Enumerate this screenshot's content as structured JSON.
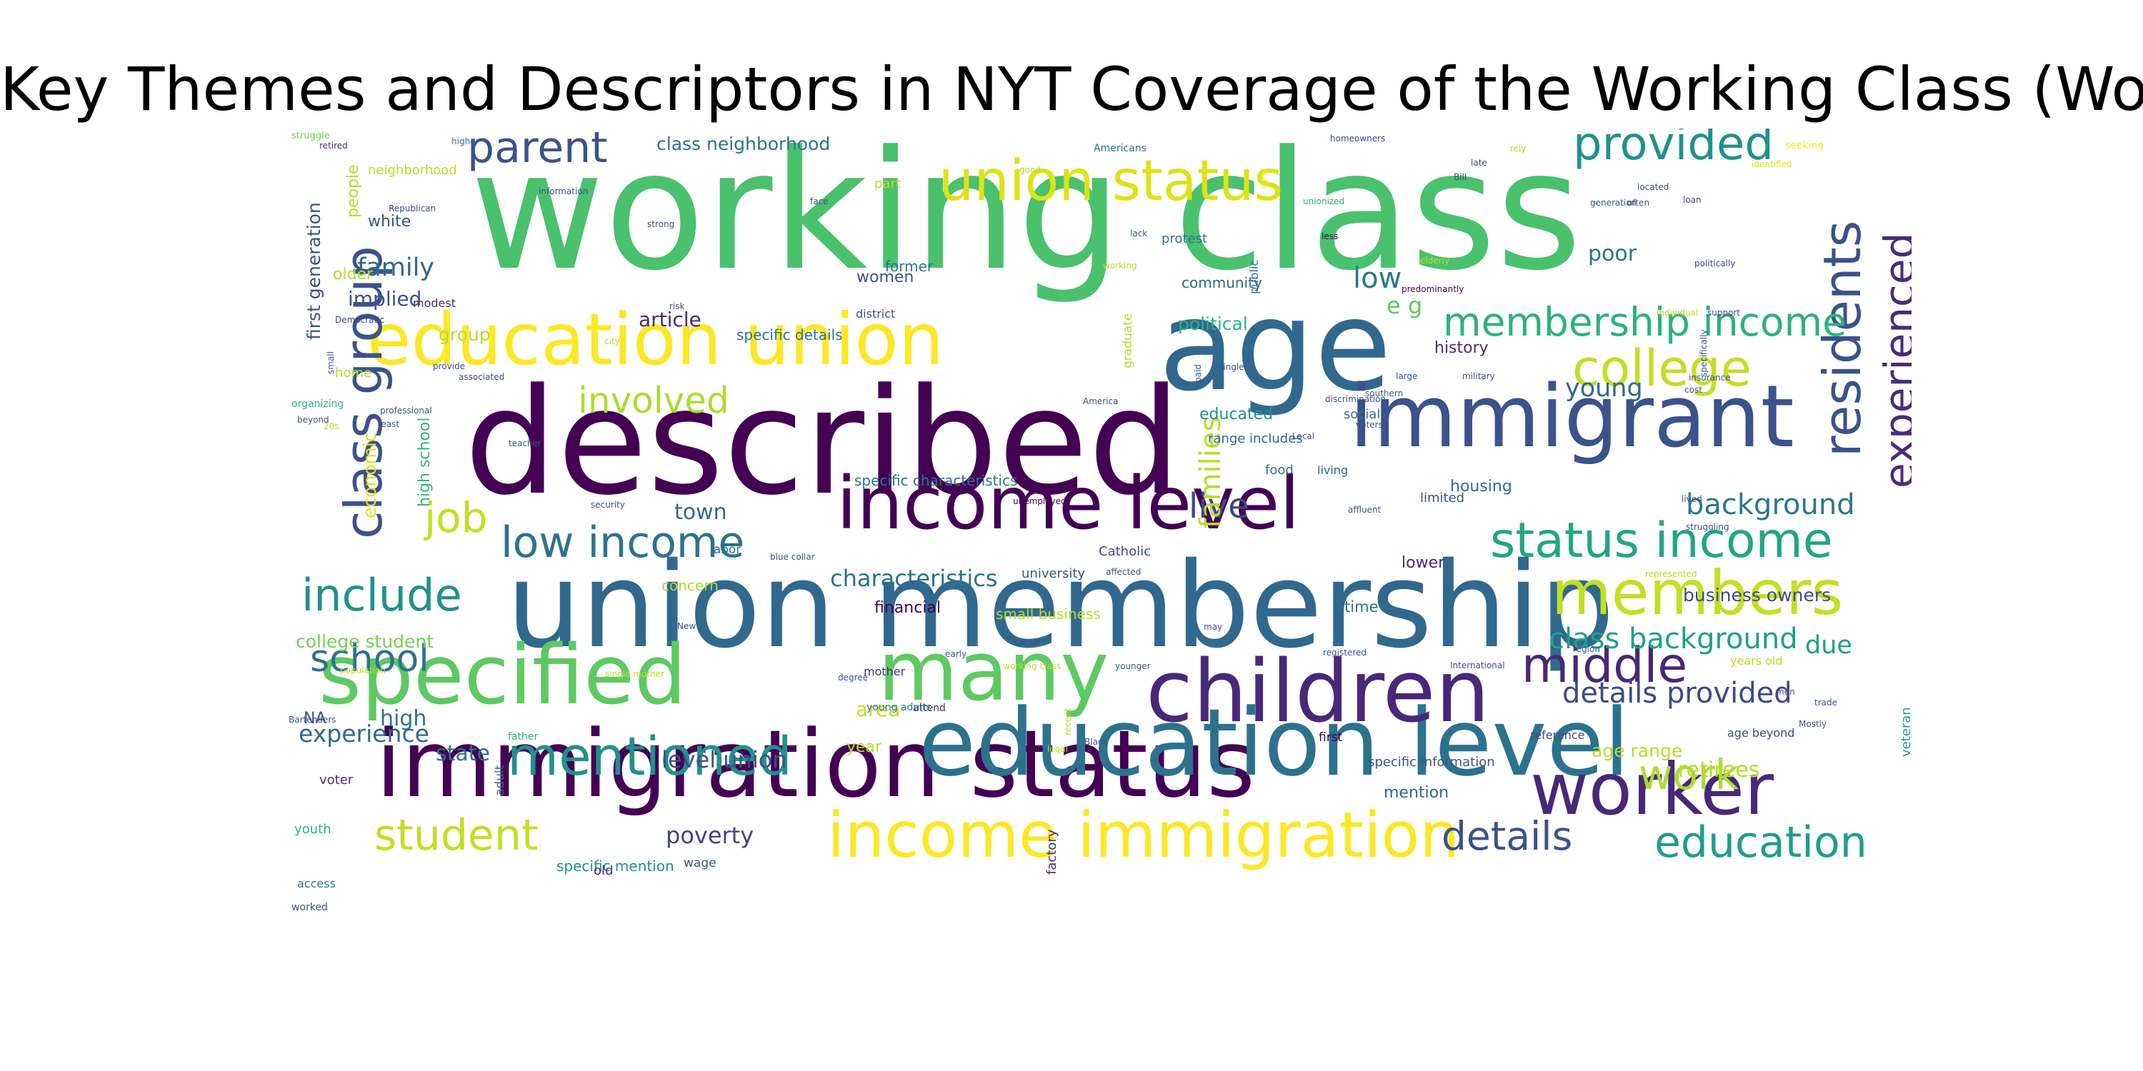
{
  "title": "Key Themes and Descriptors in NYT Coverage of the Working Class (Word Cloud)",
  "words": [
    {
      "text": "working class",
      "color": "#4ac16d"
    },
    {
      "text": "described",
      "color": "#440154"
    },
    {
      "text": "union membership",
      "color": "#31688e"
    },
    {
      "text": "immigration status",
      "color": "#440154"
    },
    {
      "text": "age",
      "color": "#31688e"
    },
    {
      "text": "education level",
      "color": "#2c728e"
    },
    {
      "text": "immigrant",
      "color": "#3b528b"
    },
    {
      "text": "children",
      "color": "#482878"
    },
    {
      "text": "specified",
      "color": "#5ec962"
    },
    {
      "text": "many",
      "color": "#5ec962"
    },
    {
      "text": "education union",
      "color": "#fde725"
    },
    {
      "text": "income level",
      "color": "#440154"
    },
    {
      "text": "worker",
      "color": "#482878"
    },
    {
      "text": "income immigration",
      "color": "#fde725"
    },
    {
      "text": "members",
      "color": "#c2df23"
    },
    {
      "text": "union status",
      "color": "#dde318"
    },
    {
      "text": "mentioned",
      "color": "#21918c"
    },
    {
      "text": "residents",
      "color": "#3b528b"
    },
    {
      "text": "status income",
      "color": "#21a685"
    },
    {
      "text": "class group",
      "color": "#3b528b"
    },
    {
      "text": "college",
      "color": "#c2df23"
    },
    {
      "text": "middle",
      "color": "#482878"
    },
    {
      "text": "provided",
      "color": "#21918c"
    },
    {
      "text": "parent",
      "color": "#3b528b"
    },
    {
      "text": "experienced",
      "color": "#472c7a"
    },
    {
      "text": "low income",
      "color": "#2c728e"
    },
    {
      "text": "include",
      "color": "#21918c"
    },
    {
      "text": "education",
      "color": "#1f9e89"
    },
    {
      "text": "membership income",
      "color": "#2db27d"
    },
    {
      "text": "involved",
      "color": "#addc30"
    },
    {
      "text": "student",
      "color": "#c2df23"
    },
    {
      "text": "details",
      "color": "#3b528b"
    },
    {
      "text": "school",
      "color": "#2c728e"
    },
    {
      "text": "job",
      "color": "#c2df23"
    },
    {
      "text": "work",
      "color": "#addc30"
    },
    {
      "text": "live",
      "color": "#3e4989"
    },
    {
      "text": "families",
      "color": "#b5de2b"
    },
    {
      "text": "background",
      "color": "#2a788e"
    },
    {
      "text": "class background",
      "color": "#1fa188"
    },
    {
      "text": "details provided",
      "color": "#3e4989"
    },
    {
      "text": "low",
      "color": "#2a788e"
    },
    {
      "text": "young",
      "color": "#31688e"
    },
    {
      "text": "family",
      "color": "#31688e"
    },
    {
      "text": "characteristics",
      "color": "#2c728e"
    },
    {
      "text": "e g",
      "color": "#5ec962"
    },
    {
      "text": "due",
      "color": "#1f9e89"
    },
    {
      "text": "experience",
      "color": "#31688e"
    },
    {
      "text": "level union",
      "color": "#3b528b"
    },
    {
      "text": "poverty",
      "color": "#414487"
    },
    {
      "text": "town",
      "color": "#31688e"
    },
    {
      "text": "first generation",
      "color": "#3b528b"
    },
    {
      "text": "economic",
      "color": "#dde318"
    },
    {
      "text": "high school",
      "color": "#35b779"
    },
    {
      "text": "article",
      "color": "#472c7a"
    },
    {
      "text": "group",
      "color": "#b5de2b"
    },
    {
      "text": "implied",
      "color": "#3b528b"
    },
    {
      "text": "high",
      "color": "#2c728e"
    },
    {
      "text": "area",
      "color": "#c2df23"
    },
    {
      "text": "state",
      "color": "#2c728e"
    },
    {
      "text": "poor",
      "color": "#2c728e"
    },
    {
      "text": "class neighborhood",
      "color": "#2c728e"
    },
    {
      "text": "people",
      "color": "#b5de2b"
    },
    {
      "text": "college student",
      "color": "#75d054"
    },
    {
      "text": "history",
      "color": "#472c7a"
    },
    {
      "text": "political",
      "color": "#2db27d"
    },
    {
      "text": "educated",
      "color": "#21918c"
    },
    {
      "text": "age range",
      "color": "#b5de2b"
    },
    {
      "text": "business owners",
      "color": "#3e4989"
    },
    {
      "text": "retirees",
      "color": "#b5de2b"
    },
    {
      "text": "housing",
      "color": "#2c728e"
    },
    {
      "text": "lower",
      "color": "#472c7a"
    },
    {
      "text": "time",
      "color": "#2c728e"
    },
    {
      "text": "older",
      "color": "#b5de2b"
    },
    {
      "text": "white",
      "color": "#3b528b"
    },
    {
      "text": "women",
      "color": "#3b528b"
    },
    {
      "text": "community",
      "color": "#31688e"
    },
    {
      "text": "specific details",
      "color": "#2c728e"
    },
    {
      "text": "specific characteristics",
      "color": "#2c728e"
    },
    {
      "text": "small business",
      "color": "#b5de2b"
    },
    {
      "text": "financial",
      "color": "#440154"
    },
    {
      "text": "concern",
      "color": "#addc30"
    },
    {
      "text": "former",
      "color": "#2c728e"
    },
    {
      "text": "year",
      "color": "#b5de2b"
    },
    {
      "text": "NA",
      "color": "#3b528b"
    },
    {
      "text": "mention",
      "color": "#31688e"
    },
    {
      "text": "specific mention",
      "color": "#21918c"
    },
    {
      "text": "social",
      "color": "#2c728e"
    },
    {
      "text": "specific information",
      "color": "#3b528b"
    },
    {
      "text": "range includes",
      "color": "#31688e"
    },
    {
      "text": "home",
      "color": "#b5de2b"
    },
    {
      "text": "limited",
      "color": "#3b528b"
    },
    {
      "text": "voter",
      "color": "#472c7a"
    },
    {
      "text": "youth",
      "color": "#2db27d"
    },
    {
      "text": "veteran",
      "color": "#1f9e89"
    },
    {
      "text": "neighborhood",
      "color": "#b5de2b"
    },
    {
      "text": "part",
      "color": "#b5de2b"
    },
    {
      "text": "public",
      "color": "#2c728e"
    },
    {
      "text": "graduate",
      "color": "#b5de2b"
    },
    {
      "text": "university",
      "color": "#3b528b"
    },
    {
      "text": "factory",
      "color": "#472c7a"
    },
    {
      "text": "old",
      "color": "#472c7a"
    },
    {
      "text": "wage",
      "color": "#3b528b"
    },
    {
      "text": "labor",
      "color": "#2c728e"
    },
    {
      "text": "first",
      "color": "#440154"
    },
    {
      "text": "reference",
      "color": "#3e4989"
    },
    {
      "text": "years old",
      "color": "#b5de2b"
    },
    {
      "text": "age beyond",
      "color": "#3e4989"
    },
    {
      "text": "Catholic",
      "color": "#3e4989"
    },
    {
      "text": "mother",
      "color": "#472c7a"
    },
    {
      "text": "attend",
      "color": "#472c7a"
    },
    {
      "text": "adult",
      "color": "#31688e"
    },
    {
      "text": "access",
      "color": "#2c728e"
    },
    {
      "text": "father",
      "color": "#2db27d"
    },
    {
      "text": "young adults",
      "color": "#2c728e"
    },
    {
      "text": "living",
      "color": "#31688e"
    },
    {
      "text": "food",
      "color": "#2c728e"
    },
    {
      "text": "protest",
      "color": "#2c728e"
    },
    {
      "text": "modest",
      "color": "#472c7a"
    },
    {
      "text": "district",
      "color": "#3b528b"
    },
    {
      "text": "worked",
      "color": "#3b528b"
    },
    {
      "text": "organizing",
      "color": "#2db27d"
    },
    {
      "text": "struggle",
      "color": "#75d054"
    },
    {
      "text": "higher",
      "color": "#2c728e"
    },
    {
      "text": "retired",
      "color": "#472c7a"
    },
    {
      "text": "Americans",
      "color": "#2c728e"
    },
    {
      "text": "homeowners",
      "color": "#3e4989"
    },
    {
      "text": "seeking",
      "color": "#fde725"
    },
    {
      "text": "identified",
      "color": "#dde318"
    },
    {
      "text": "Republican",
      "color": "#3e4989"
    },
    {
      "text": "information",
      "color": "#3b528b"
    },
    {
      "text": "face",
      "color": "#3b528b"
    },
    {
      "text": "Bill",
      "color": "#3b528b"
    },
    {
      "text": "late",
      "color": "#3e4989"
    },
    {
      "text": "rely",
      "color": "#b5de2b"
    },
    {
      "text": "good",
      "color": "#b5de2b"
    },
    {
      "text": "rural",
      "color": "#fde725"
    },
    {
      "text": "unionized",
      "color": "#2db27d"
    },
    {
      "text": "generation",
      "color": "#3b528b"
    },
    {
      "text": "often",
      "color": "#3b528b"
    },
    {
      "text": "loan",
      "color": "#3b528b"
    },
    {
      "text": "located",
      "color": "#3e4989"
    },
    {
      "text": "lack",
      "color": "#3b528b"
    },
    {
      "text": "strong",
      "color": "#3b528b"
    },
    {
      "text": "less",
      "color": "#440154"
    },
    {
      "text": "politically",
      "color": "#3e4989"
    },
    {
      "text": "elderly",
      "color": "#b5de2b"
    },
    {
      "text": "predominantly",
      "color": "#440154"
    },
    {
      "text": "working",
      "color": "#b5de2b"
    },
    {
      "text": "risk",
      "color": "#3b528b"
    },
    {
      "text": "individual",
      "color": "#b5de2b"
    },
    {
      "text": "support",
      "color": "#3e4989"
    },
    {
      "text": "Democratic",
      "color": "#3e4989"
    },
    {
      "text": "small",
      "color": "#3b528b"
    },
    {
      "text": "specifically",
      "color": "#3b528b"
    },
    {
      "text": "city",
      "color": "#b5de2b"
    },
    {
      "text": "paid",
      "color": "#3b528b"
    },
    {
      "text": "single",
      "color": "#3b528b"
    },
    {
      "text": "provide",
      "color": "#3b528b"
    },
    {
      "text": "associated",
      "color": "#3b528b"
    },
    {
      "text": "large",
      "color": "#3b528b"
    },
    {
      "text": "military",
      "color": "#3b528b"
    },
    {
      "text": "insurance",
      "color": "#3b528b"
    },
    {
      "text": "southern",
      "color": "#3b528b"
    },
    {
      "text": "discrimination",
      "color": "#3b528b"
    },
    {
      "text": "cost",
      "color": "#3b528b"
    },
    {
      "text": "professional",
      "color": "#3b528b"
    },
    {
      "text": "beyond",
      "color": "#3b528b"
    },
    {
      "text": "20s",
      "color": "#b5de2b"
    },
    {
      "text": "least",
      "color": "#3b528b"
    },
    {
      "text": "America",
      "color": "#3b528b"
    },
    {
      "text": "voters'",
      "color": "#3b528b"
    },
    {
      "text": "teacher",
      "color": "#3b528b"
    },
    {
      "text": "Local",
      "color": "#3b528b"
    },
    {
      "text": "security",
      "color": "#3b528b"
    },
    {
      "text": "unemployed",
      "color": "#440154"
    },
    {
      "text": "affluent",
      "color": "#3b528b"
    },
    {
      "text": "lived",
      "color": "#3b528b"
    },
    {
      "text": "struggling",
      "color": "#3b528b"
    },
    {
      "text": "blue collar",
      "color": "#3b528b"
    },
    {
      "text": "affected",
      "color": "#3b528b"
    },
    {
      "text": "represented",
      "color": "#b5de2b"
    },
    {
      "text": "New",
      "color": "#3b528b"
    },
    {
      "text": "may",
      "color": "#3b528b"
    },
    {
      "text": "early",
      "color": "#3b528b"
    },
    {
      "text": "career",
      "color": "#3b528b"
    },
    {
      "text": "working class",
      "color": "#b5de2b"
    },
    {
      "text": "younger",
      "color": "#3b528b"
    },
    {
      "text": "registered",
      "color": "#3b528b"
    },
    {
      "text": "region",
      "color": "#3b528b"
    },
    {
      "text": "International",
      "color": "#3b528b"
    },
    {
      "text": "degree",
      "color": "#3b528b"
    },
    {
      "text": "single mother",
      "color": "#b5de2b"
    },
    {
      "text": "population",
      "color": "#b5de2b"
    },
    {
      "text": "recent",
      "color": "#b5de2b"
    },
    {
      "text": "men",
      "color": "#3b528b"
    },
    {
      "text": "trade",
      "color": "#3b528b"
    },
    {
      "text": "Mostly",
      "color": "#3b528b"
    },
    {
      "text": "Bartenders",
      "color": "#3b528b"
    },
    {
      "text": "Black",
      "color": "#3b528b"
    },
    {
      "text": "legal",
      "color": "#b5de2b"
    }
  ]
}
